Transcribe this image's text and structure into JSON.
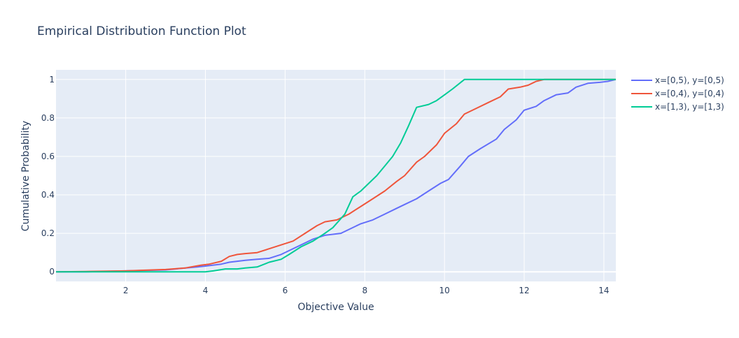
{
  "chart_data": {
    "type": "line",
    "title": "Empirical Distribution Function Plot",
    "xlabel": "Objective Value",
    "ylabel": "Cumulative Probability",
    "xlim": [
      0.25,
      14.3
    ],
    "ylim": [
      -0.05,
      1.05
    ],
    "xticks": [
      2,
      4,
      6,
      8,
      10,
      12,
      14
    ],
    "yticks": [
      0,
      0.2,
      0.4,
      0.6,
      0.8,
      1
    ],
    "ytick_labels": [
      "0",
      "0.2",
      "0.4",
      "0.6",
      "0.8",
      "1"
    ],
    "grid": true,
    "legend_position": "top-right-outside",
    "plot_bgcolor": "#e5ecf6",
    "series": [
      {
        "name": "x=[0,5), y=[0,5)",
        "color": "#636efa",
        "x": [
          0.25,
          1.0,
          2.0,
          3.0,
          3.5,
          3.8,
          4.0,
          4.2,
          4.4,
          4.6,
          4.8,
          5.0,
          5.3,
          5.6,
          5.9,
          6.1,
          6.4,
          6.7,
          7.0,
          7.4,
          7.6,
          7.9,
          8.2,
          8.5,
          8.8,
          9.0,
          9.3,
          9.6,
          9.9,
          10.1,
          10.4,
          10.6,
          10.9,
          11.3,
          11.5,
          11.8,
          12.0,
          12.3,
          12.5,
          12.8,
          13.1,
          13.3,
          13.6,
          13.9,
          14.1,
          14.3
        ],
        "y": [
          0.0,
          0.0,
          0.005,
          0.01,
          0.02,
          0.025,
          0.03,
          0.035,
          0.04,
          0.05,
          0.055,
          0.06,
          0.065,
          0.07,
          0.09,
          0.11,
          0.14,
          0.17,
          0.19,
          0.2,
          0.22,
          0.25,
          0.27,
          0.3,
          0.33,
          0.35,
          0.38,
          0.42,
          0.46,
          0.48,
          0.55,
          0.6,
          0.64,
          0.69,
          0.74,
          0.79,
          0.84,
          0.86,
          0.89,
          0.92,
          0.93,
          0.96,
          0.98,
          0.985,
          0.99,
          1.0
        ]
      },
      {
        "name": "x=[0,4), y=[0,4)",
        "color": "#ef553b",
        "x": [
          0.25,
          1.0,
          2.0,
          3.0,
          3.5,
          3.9,
          4.1,
          4.4,
          4.6,
          4.8,
          5.0,
          5.3,
          5.6,
          5.9,
          6.2,
          6.5,
          6.8,
          7.0,
          7.3,
          7.6,
          7.9,
          8.2,
          8.5,
          8.8,
          9.0,
          9.3,
          9.5,
          9.8,
          10.0,
          10.3,
          10.5,
          10.8,
          11.1,
          11.4,
          11.6,
          11.9,
          12.1,
          12.3,
          12.5,
          12.8,
          13.1,
          14.3
        ],
        "y": [
          0.0,
          0.002,
          0.005,
          0.012,
          0.02,
          0.035,
          0.04,
          0.055,
          0.08,
          0.09,
          0.095,
          0.1,
          0.12,
          0.14,
          0.16,
          0.2,
          0.24,
          0.26,
          0.27,
          0.3,
          0.34,
          0.38,
          0.42,
          0.47,
          0.5,
          0.57,
          0.6,
          0.66,
          0.72,
          0.77,
          0.82,
          0.85,
          0.88,
          0.91,
          0.95,
          0.96,
          0.97,
          0.99,
          1.0,
          1.0,
          1.0,
          1.0
        ]
      },
      {
        "name": "x=[1,3), y=[1,3)",
        "color": "#00cc96",
        "x": [
          0.25,
          1.0,
          2.0,
          3.0,
          3.5,
          4.0,
          4.2,
          4.5,
          4.8,
          5.0,
          5.3,
          5.6,
          5.9,
          6.1,
          6.4,
          6.7,
          7.0,
          7.2,
          7.5,
          7.7,
          7.9,
          8.1,
          8.3,
          8.5,
          8.7,
          8.9,
          9.1,
          9.3,
          9.6,
          9.8,
          10.0,
          10.2,
          10.5,
          11.0,
          12.0,
          13.0,
          14.3
        ],
        "y": [
          0.0,
          0.0,
          0.0,
          0.0,
          0.0,
          0.0,
          0.005,
          0.015,
          0.015,
          0.02,
          0.025,
          0.05,
          0.065,
          0.09,
          0.13,
          0.16,
          0.2,
          0.23,
          0.3,
          0.39,
          0.42,
          0.46,
          0.5,
          0.55,
          0.6,
          0.67,
          0.76,
          0.855,
          0.87,
          0.89,
          0.92,
          0.95,
          1.0,
          1.0,
          1.0,
          1.0,
          1.0
        ]
      }
    ]
  }
}
